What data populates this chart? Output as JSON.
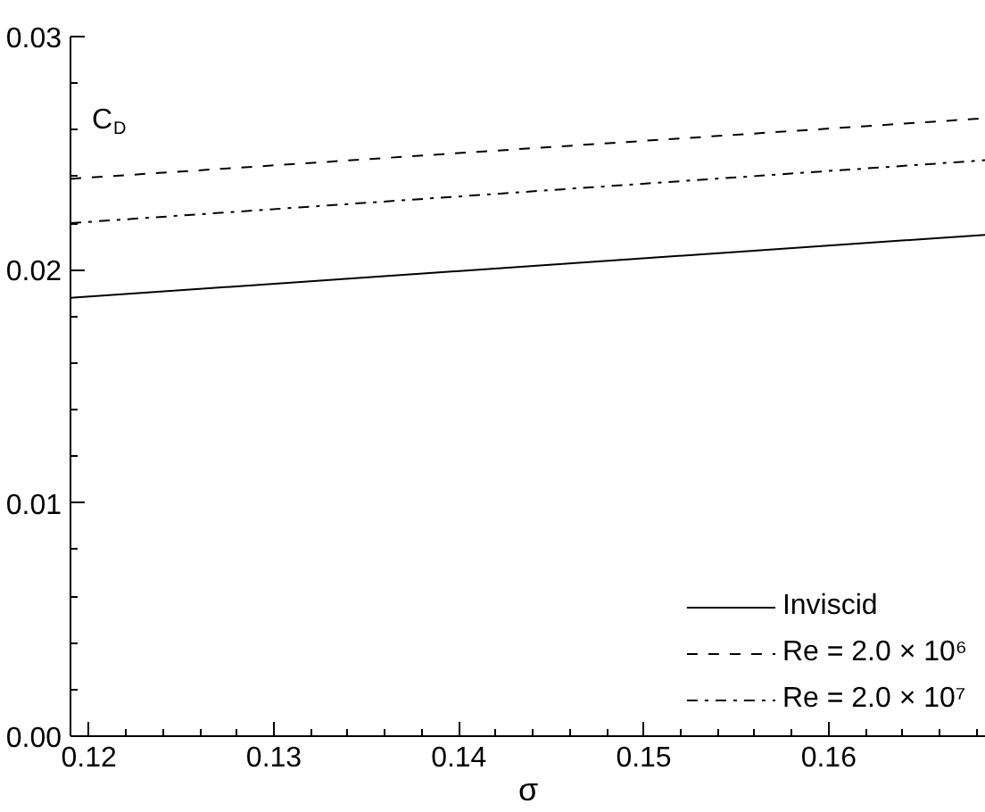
{
  "chart_data": {
    "type": "line",
    "xlabel": "σ",
    "ylabel": "C$_{D}$",
    "x": [
      0.119,
      0.1685
    ],
    "series": [
      {
        "name": "Inviscid",
        "color": "#000000",
        "line_style": "solid",
        "values": [
          0.0188,
          0.0215
        ]
      },
      {
        "name": "Re = 2.0 × 10⁶",
        "color": "#000000",
        "line_style": "dashed",
        "values": [
          0.0239,
          0.0265
        ]
      },
      {
        "name": "Re = 2.0 × 10⁷",
        "color": "#000000",
        "line_style": "dashdot",
        "values": [
          0.022,
          0.0247
        ]
      }
    ],
    "xlim": [
      0.119,
      0.1685
    ],
    "ylim": [
      0.0,
      0.03
    ],
    "xticks": [
      0.12,
      0.13,
      0.14,
      0.15,
      0.16
    ],
    "yticks": [
      {
        "value": 0.0,
        "label": "0.00"
      },
      {
        "value": 0.01,
        "label": "0.01"
      },
      {
        "value": 0.02,
        "label": "0.02"
      },
      {
        "value": 0.03,
        "label": "0.03"
      }
    ],
    "grid": false,
    "legend": "bottom right",
    "marker": "none"
  }
}
